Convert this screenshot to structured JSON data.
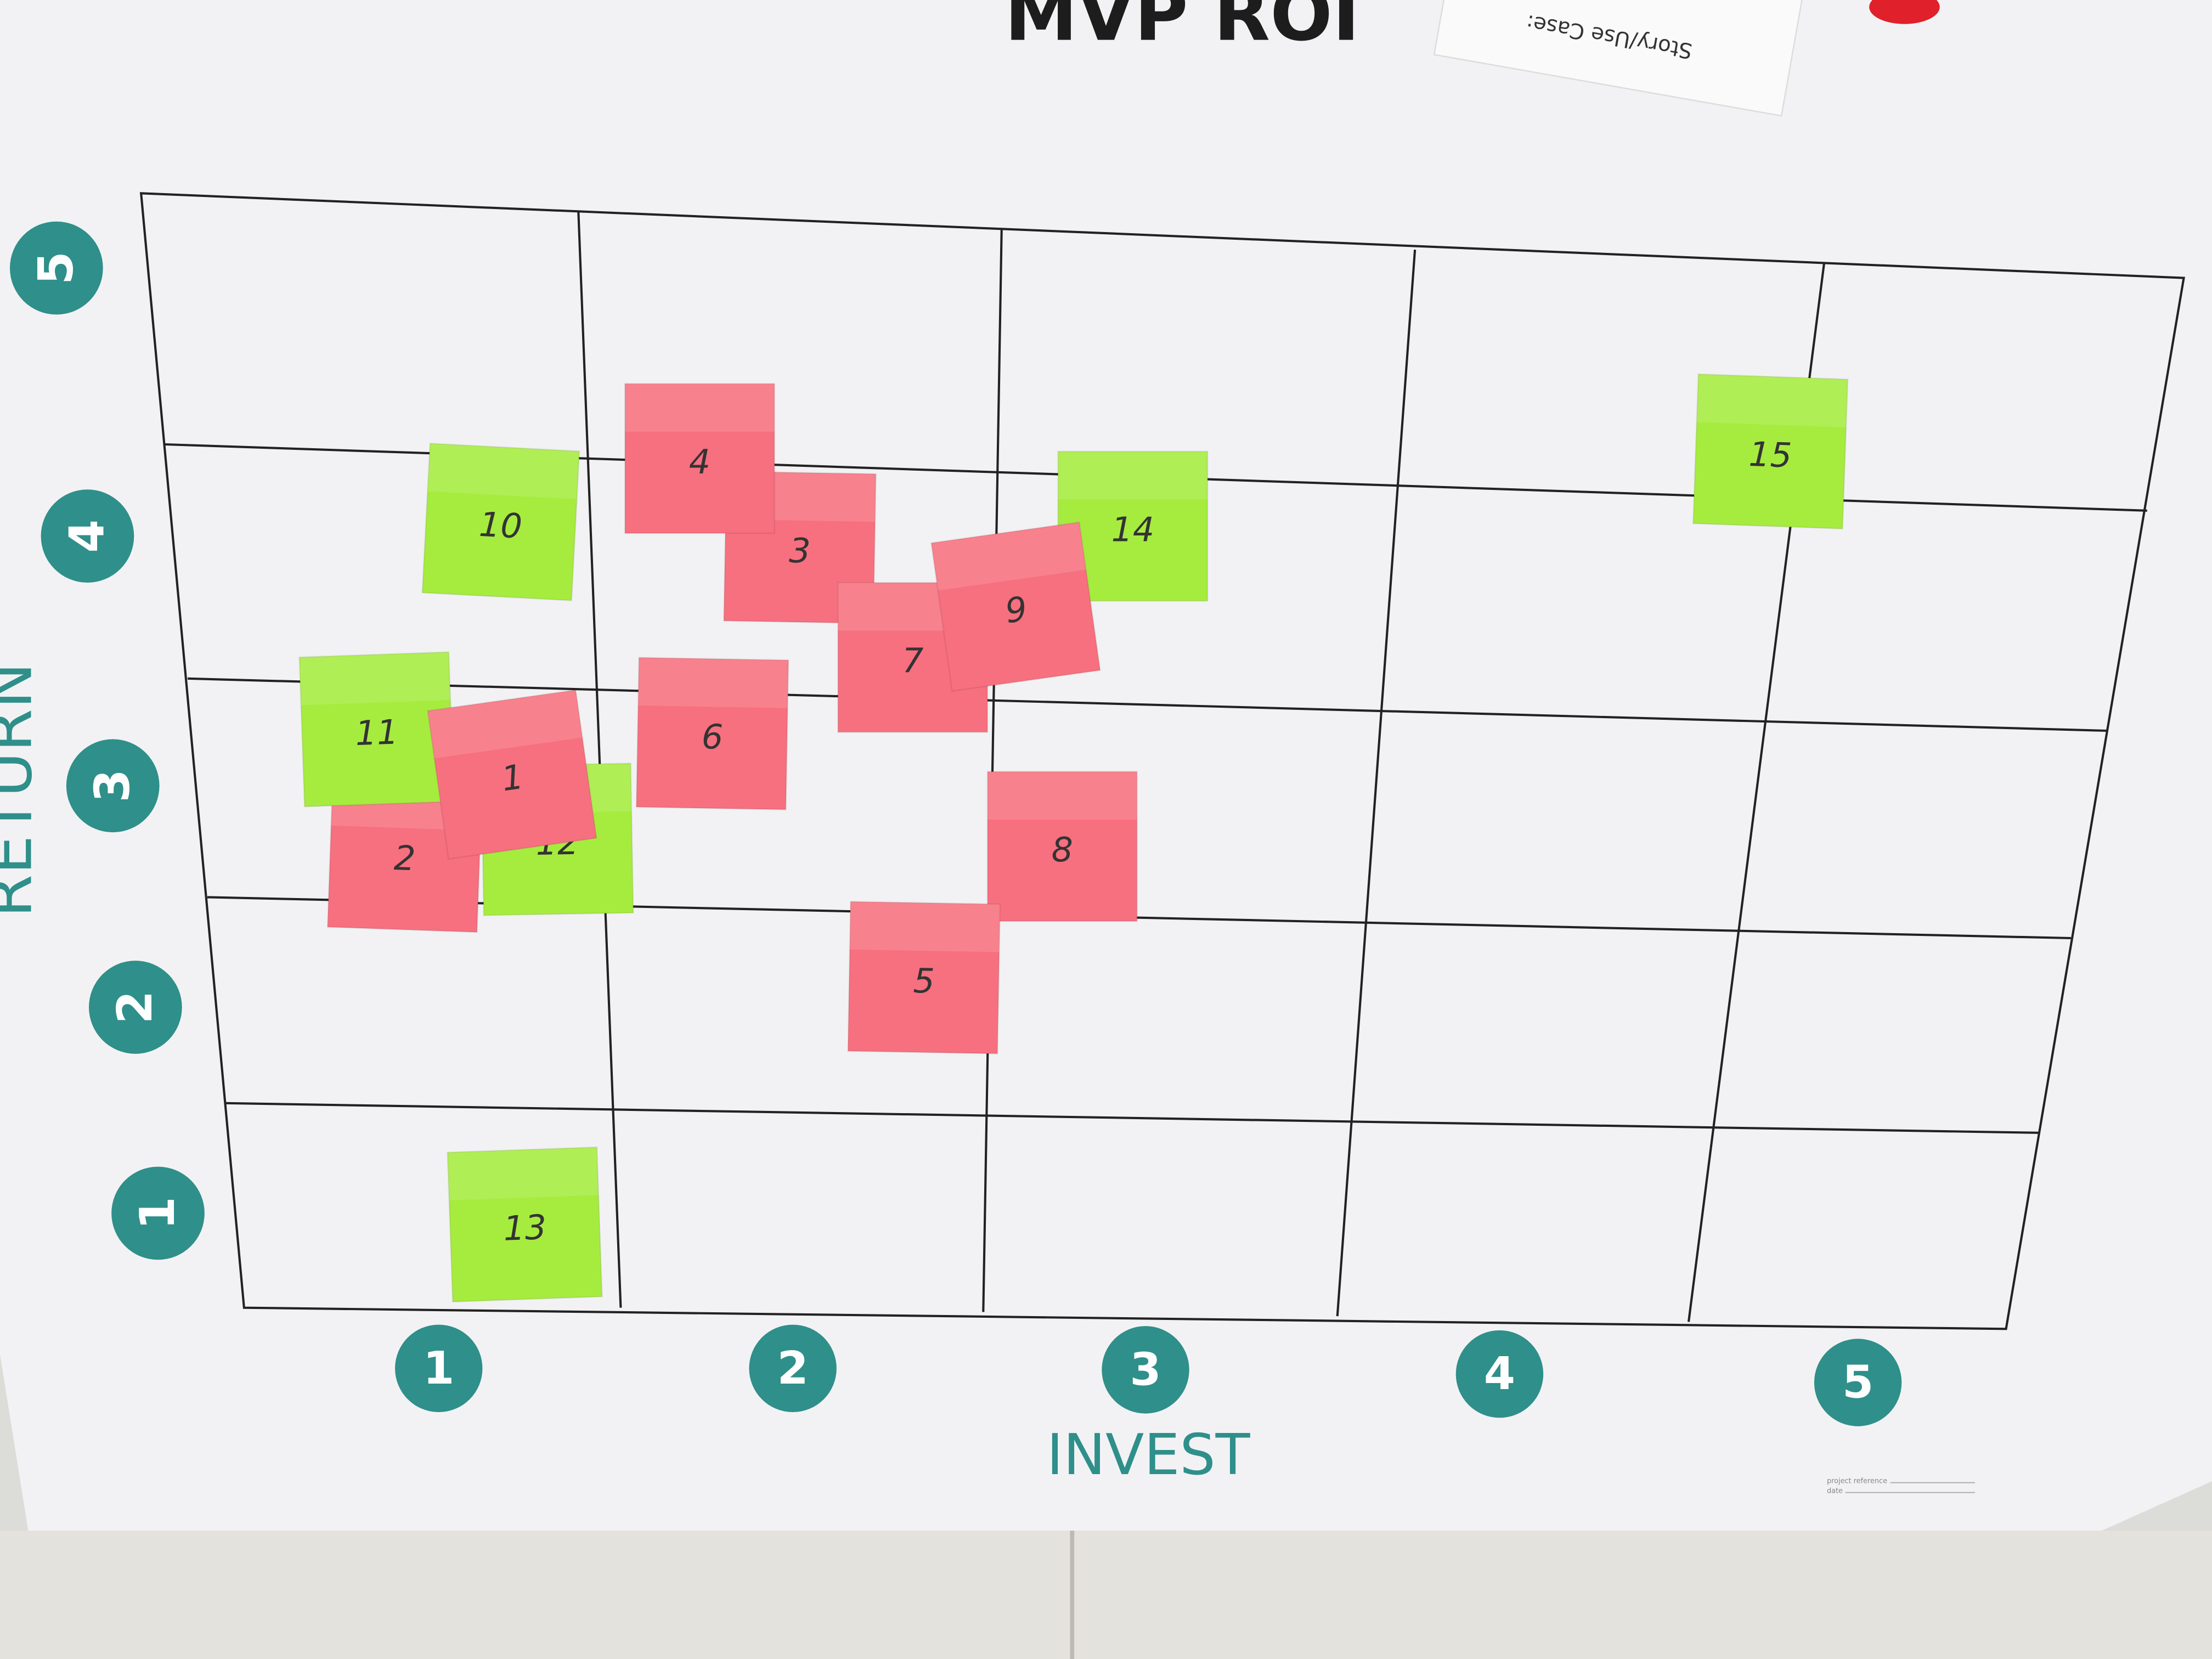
{
  "title": "MVP ROI",
  "strip_text": "Story/Use Case:",
  "y_axis": {
    "label": "RETURN",
    "ticks": [
      "5",
      "4",
      "3",
      "2",
      "1"
    ]
  },
  "x_axis": {
    "label": "INVEST",
    "ticks": [
      "1",
      "2",
      "3",
      "4",
      "5"
    ]
  },
  "footer": {
    "reference": "project reference",
    "date": "date"
  },
  "colors": {
    "pink": "#f7707f",
    "green": "#a6ec3f"
  },
  "notes": [
    {
      "label": "1",
      "color": "pink"
    },
    {
      "label": "2",
      "color": "pink"
    },
    {
      "label": "3",
      "color": "pink"
    },
    {
      "label": "4",
      "color": "pink"
    },
    {
      "label": "5",
      "color": "pink"
    },
    {
      "label": "6",
      "color": "pink"
    },
    {
      "label": "7",
      "color": "pink"
    },
    {
      "label": "8",
      "color": "pink"
    },
    {
      "label": "9",
      "color": "pink"
    },
    {
      "label": "10",
      "color": "green"
    },
    {
      "label": "11",
      "color": "green"
    },
    {
      "label": "12",
      "color": "green"
    },
    {
      "label": "13",
      "color": "green"
    },
    {
      "label": "14",
      "color": "green"
    },
    {
      "label": "15",
      "color": "green"
    }
  ]
}
